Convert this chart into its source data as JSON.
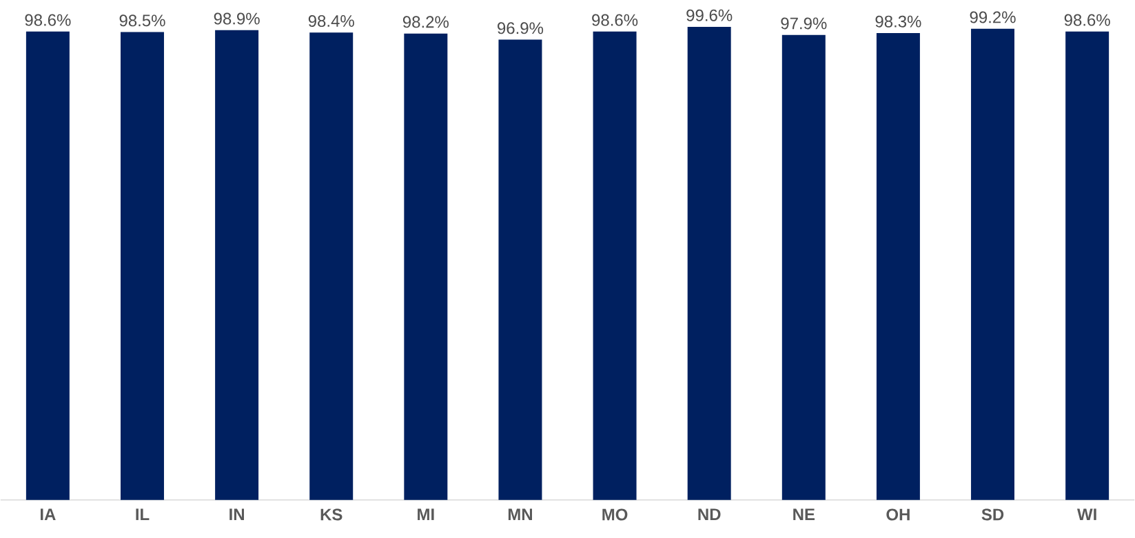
{
  "chart_data": {
    "type": "bar",
    "categories": [
      "IA",
      "IL",
      "IN",
      "KS",
      "MI",
      "MN",
      "MO",
      "ND",
      "NE",
      "OH",
      "SD",
      "WI"
    ],
    "values": [
      98.6,
      98.5,
      98.9,
      98.4,
      98.2,
      96.9,
      98.6,
      99.6,
      97.9,
      98.3,
      99.2,
      98.6
    ],
    "value_labels": [
      "98.6%",
      "98.5%",
      "98.9%",
      "98.4%",
      "98.2%",
      "96.9%",
      "98.6%",
      "99.6%",
      "97.9%",
      "98.3%",
      "99.2%",
      "98.6%"
    ],
    "color": "#002060",
    "tick_labels": "x"
  }
}
